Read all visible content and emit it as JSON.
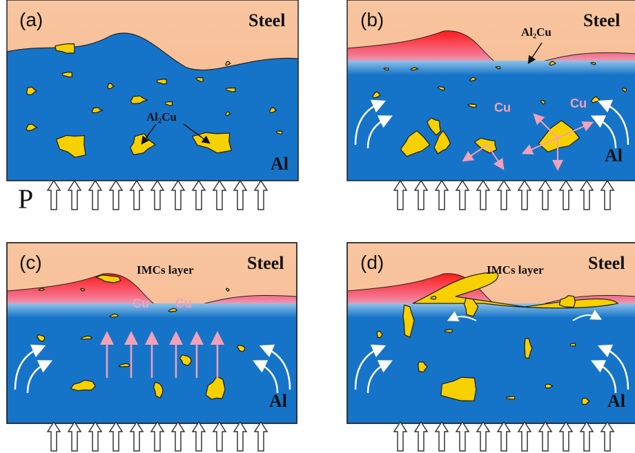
{
  "panels": [
    {
      "label": "(a)",
      "top_material": "Steel",
      "bottom_material": "Al",
      "phase_label": "Al₂Cu",
      "pressure_label": "P"
    },
    {
      "label": "(b)",
      "top_material": "Steel",
      "bottom_material": "Al",
      "phase_label": "Al₂Cu",
      "element_labels": [
        "Cu",
        "Cu"
      ]
    },
    {
      "label": "(c)",
      "top_material": "Steel",
      "bottom_material": "Al",
      "layer_label": "IMCs layer",
      "element_labels": [
        "Cu",
        "Cu"
      ]
    },
    {
      "label": "(d)",
      "top_material": "Steel",
      "bottom_material": "Al",
      "layer_label": "IMCs layer"
    }
  ]
}
